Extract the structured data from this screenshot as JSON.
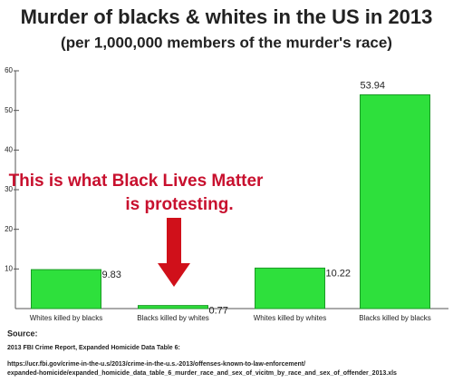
{
  "chart_data": {
    "type": "bar",
    "title": "Murder of blacks & whites in the US in 2013",
    "subtitle": "(per 1,000,000 members of the murder's race)",
    "categories": [
      "Whites killed by blacks",
      "Blacks killed by whites",
      "Whites killed by whites",
      "Blacks killed by blacks"
    ],
    "values": [
      9.83,
      0.77,
      10.22,
      53.94
    ],
    "color": "#2ee03c",
    "ylim": [
      0,
      60
    ],
    "yticks": [
      10,
      20,
      30,
      40,
      50,
      60
    ],
    "grid": false,
    "annotations": [
      "This is what Black Lives Matter",
      "is protesting."
    ],
    "source": [
      "Source:",
      "2013 FBI Crime Report, Expanded Homicide Data Table 6:",
      "https://ucr.fbi.gov/crime-in-the-u.s/2013/crime-in-the-u.s.-2013/offenses-known-to-law-enforcement/",
      "expanded-homicide/expanded_homicide_data_table_6_murder_race_and_sex_of_vicitm_by_race_and_sex_of_offender_2013.xls"
    ]
  }
}
